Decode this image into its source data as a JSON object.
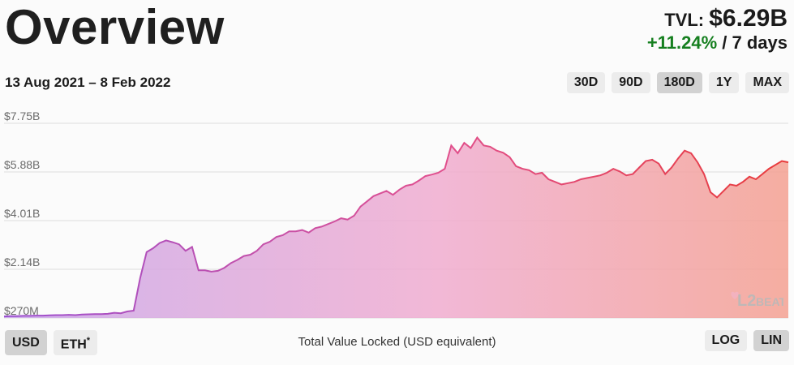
{
  "header": {
    "title": "Overview",
    "tvl_label": "TVL:",
    "tvl_value": "$6.29B",
    "tvl_change": "+11.24%",
    "tvl_period": "/ 7 days"
  },
  "date_range": "13 Aug 2021 – 8 Feb 2022",
  "range_buttons": [
    {
      "label": "30D",
      "active": false
    },
    {
      "label": "90D",
      "active": false
    },
    {
      "label": "180D",
      "active": true
    },
    {
      "label": "1Y",
      "active": false
    },
    {
      "label": "MAX",
      "active": false
    }
  ],
  "footer": {
    "currency_usd": "USD",
    "currency_eth": "ETH",
    "currency_eth_mark": "*",
    "caption": "Total Value Locked (USD equivalent)",
    "scale_log": "LOG",
    "scale_lin": "LIN"
  },
  "logo": {
    "text": "L2BEAT"
  },
  "colors": {
    "gradient_start": "#9b4fd0",
    "gradient_mid": "#e0508f",
    "gradient_end": "#e83a3a",
    "positive": "#157f1f",
    "active_button": "#d2d2d2",
    "button": "#ececec"
  },
  "chart_data": {
    "type": "area",
    "title": "",
    "xlabel": "",
    "ylabel": "",
    "x_start": "13 Aug 2021",
    "x_end": "8 Feb 2022",
    "yticks": [
      "$270M",
      "$2.14B",
      "$4.01B",
      "$5.88B",
      "$7.75B"
    ],
    "ytick_values": [
      0.27,
      2.14,
      4.01,
      5.88,
      7.75
    ],
    "ylim": [
      0.27,
      7.75
    ],
    "grid": true,
    "legend": "none",
    "unit": "USD billions",
    "values": [
      0.33,
      0.34,
      0.34,
      0.35,
      0.35,
      0.36,
      0.36,
      0.37,
      0.38,
      0.38,
      0.39,
      0.38,
      0.4,
      0.41,
      0.42,
      0.42,
      0.43,
      0.47,
      0.45,
      0.52,
      0.55,
      1.8,
      2.8,
      2.95,
      3.15,
      3.25,
      3.18,
      3.1,
      2.85,
      3.0,
      2.1,
      2.1,
      2.05,
      2.08,
      2.2,
      2.38,
      2.5,
      2.65,
      2.7,
      2.85,
      3.1,
      3.2,
      3.38,
      3.45,
      3.6,
      3.6,
      3.65,
      3.55,
      3.72,
      3.78,
      3.88,
      3.98,
      4.1,
      4.05,
      4.2,
      4.55,
      4.75,
      4.95,
      5.05,
      5.15,
      5.0,
      5.2,
      5.35,
      5.4,
      5.55,
      5.72,
      5.78,
      5.85,
      6.0,
      6.9,
      6.6,
      7.0,
      6.8,
      7.2,
      6.9,
      6.85,
      6.7,
      6.62,
      6.45,
      6.1,
      6.0,
      5.95,
      5.8,
      5.85,
      5.6,
      5.5,
      5.4,
      5.45,
      5.5,
      5.6,
      5.65,
      5.7,
      5.75,
      5.85,
      6.0,
      5.9,
      5.75,
      5.8,
      6.05,
      6.3,
      6.35,
      6.2,
      5.8,
      6.05,
      6.4,
      6.7,
      6.6,
      6.25,
      5.8,
      5.1,
      4.9,
      5.15,
      5.4,
      5.35,
      5.5,
      5.7,
      5.6,
      5.8,
      6.0,
      6.15,
      6.3,
      6.25
    ],
    "series": [
      {
        "name": "",
        "values": []
      }
    ]
  }
}
